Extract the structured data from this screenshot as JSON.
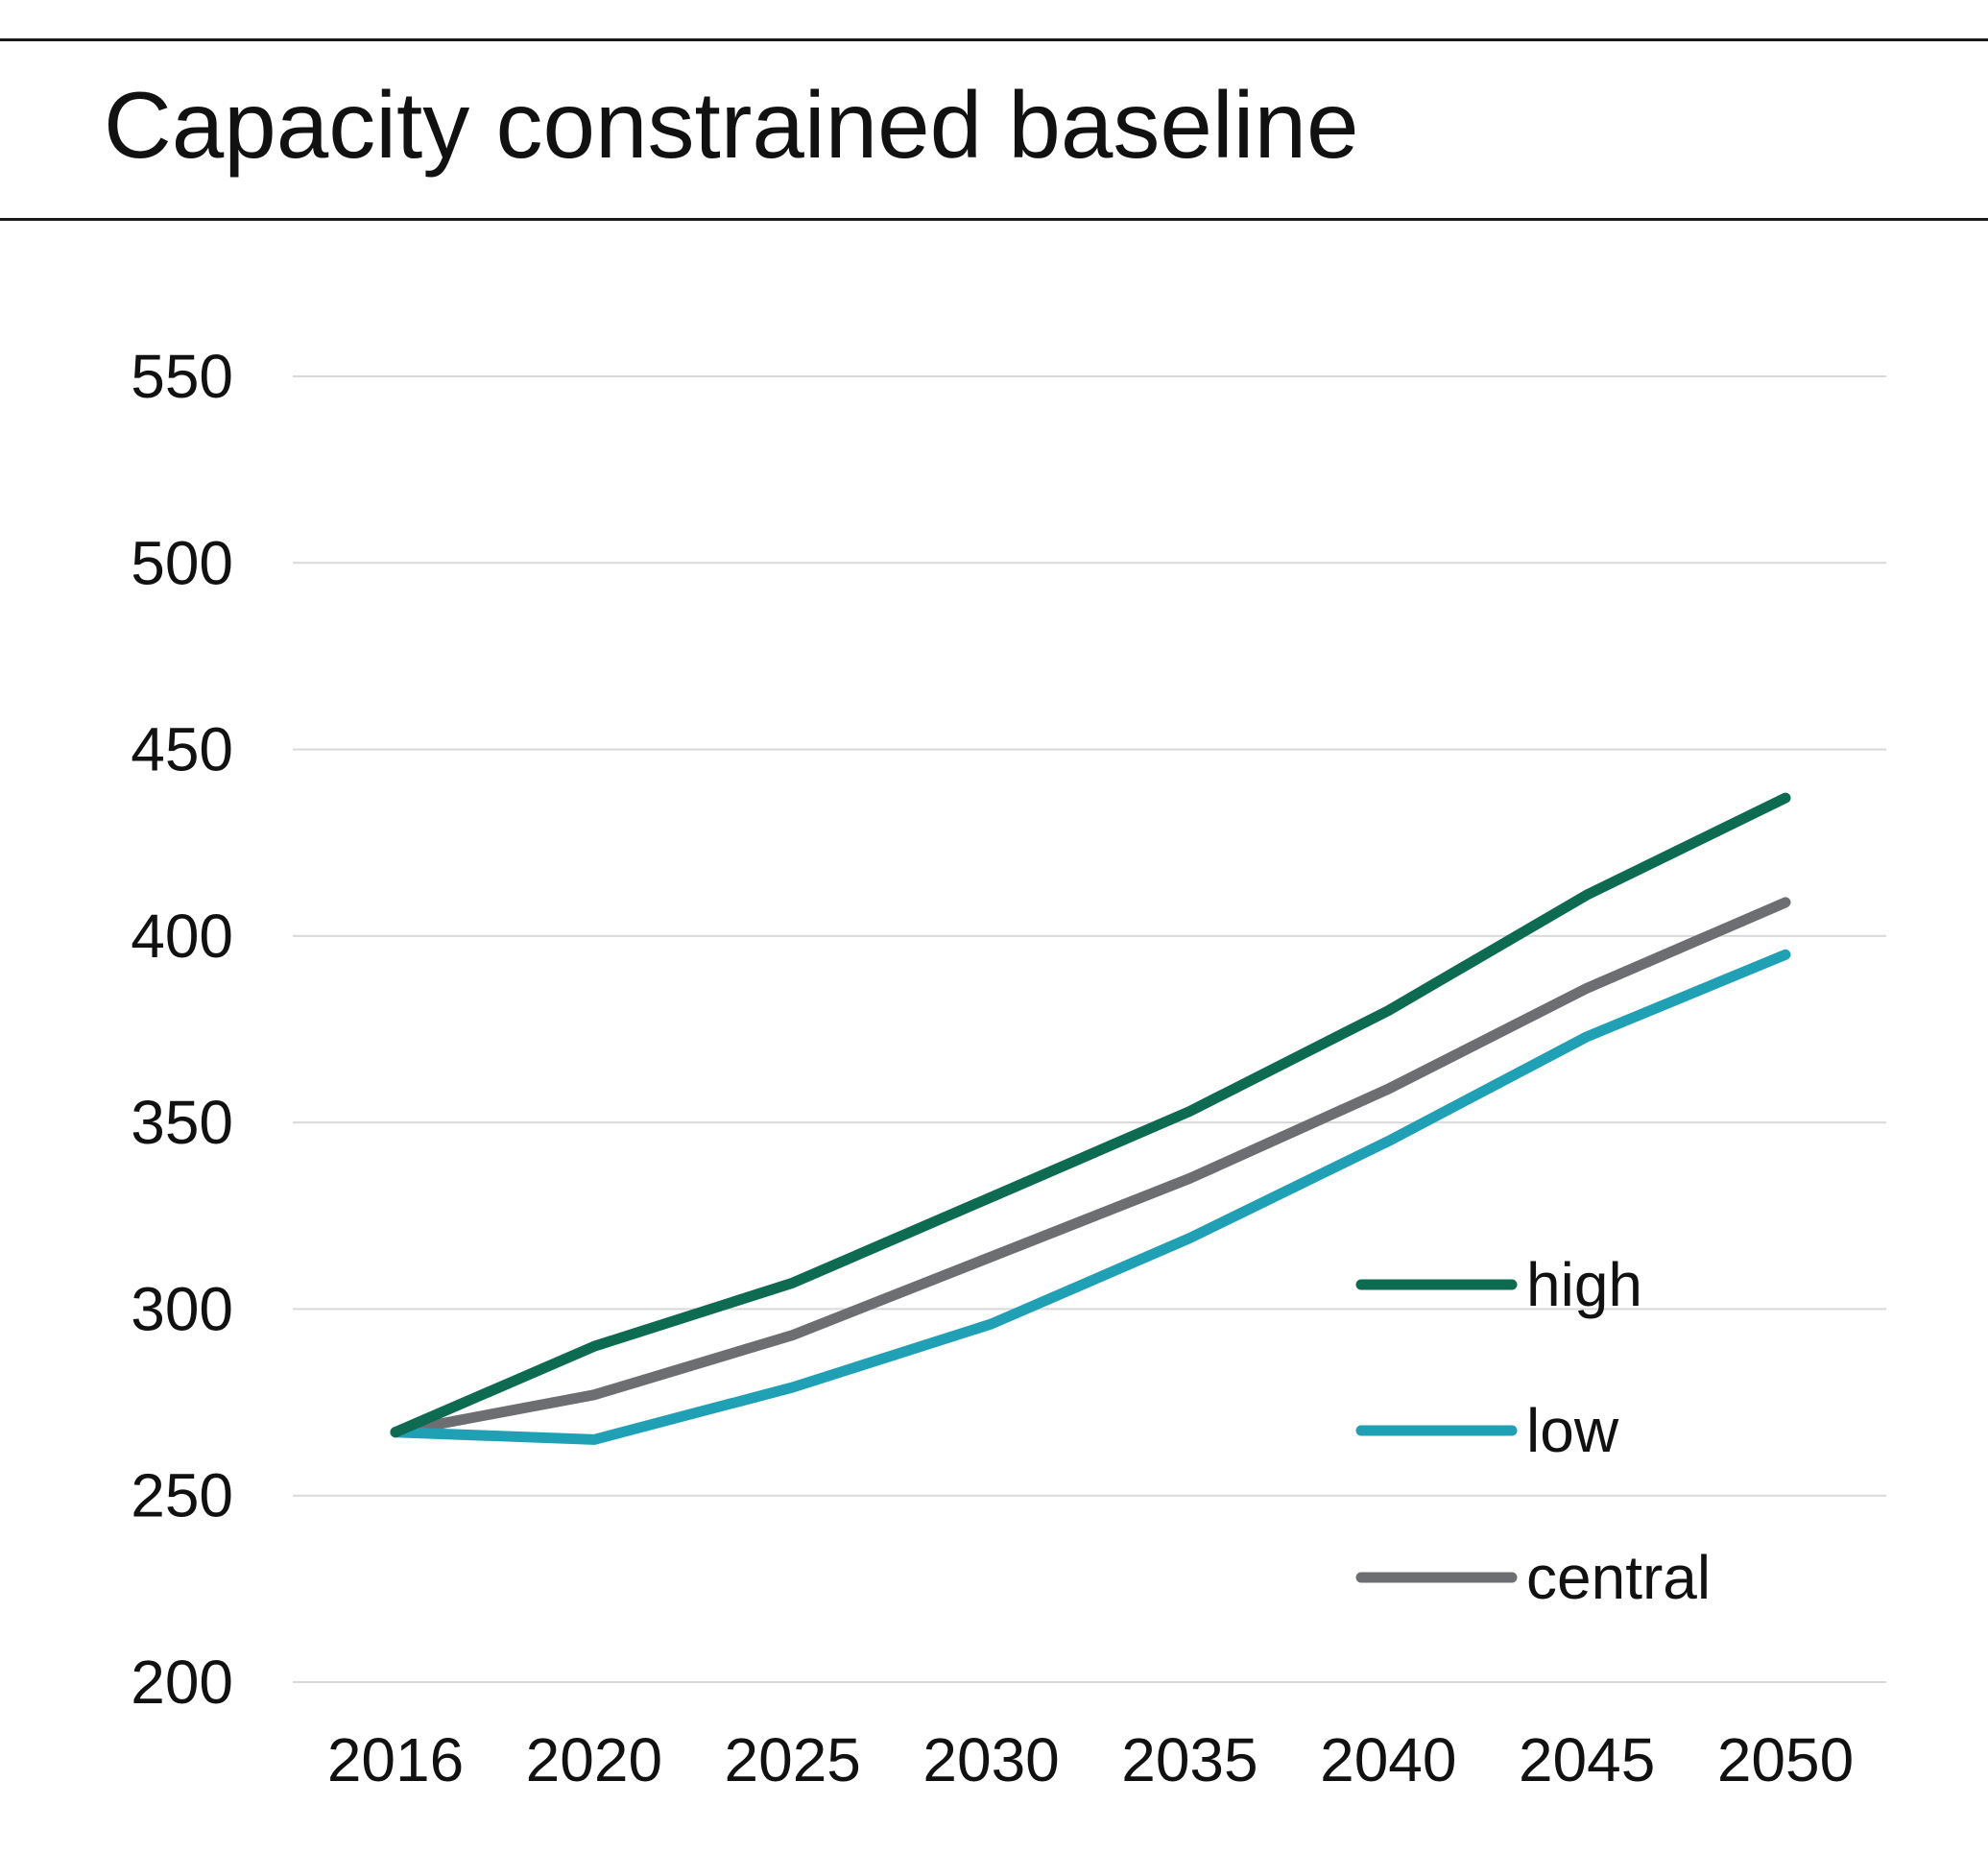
{
  "header": {
    "title": "Capacity constrained baseline"
  },
  "chart_data": {
    "type": "line",
    "title": "Capacity constrained baseline",
    "xlabel": "",
    "ylabel": "",
    "categories": [
      "2016",
      "2020",
      "2025",
      "2030",
      "2035",
      "2040",
      "2045",
      "2050"
    ],
    "ylim": [
      200,
      550
    ],
    "yticks": [
      200,
      250,
      300,
      350,
      400,
      450,
      500,
      550
    ],
    "grid": true,
    "legend_position": "lower-right",
    "series": [
      {
        "name": "high",
        "color": "#0d6b52",
        "values": [
          267,
          290,
          307,
          330,
          353,
          380,
          411,
          437
        ]
      },
      {
        "name": "low",
        "color": "#1fa0b4",
        "values": [
          267,
          265,
          279,
          296,
          319,
          345,
          373,
          395
        ]
      },
      {
        "name": "central",
        "color": "#6d6e71",
        "values": [
          267,
          277,
          293,
          314,
          335,
          359,
          386,
          409
        ]
      }
    ]
  }
}
